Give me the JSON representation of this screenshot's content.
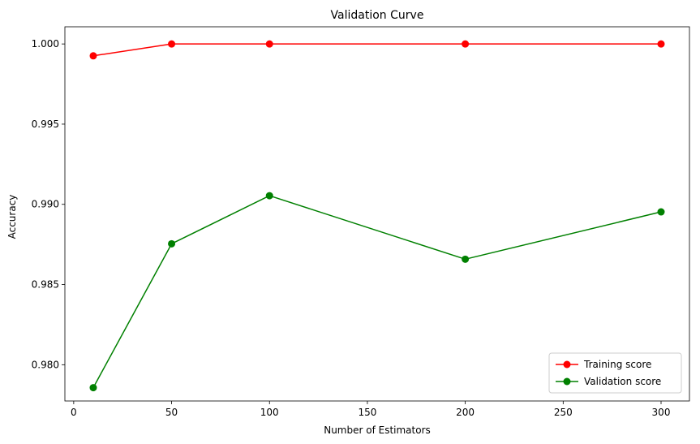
{
  "chart_data": {
    "type": "line",
    "title": "Validation Curve",
    "xlabel": "Number of Estimators",
    "ylabel": "Accuracy",
    "xlim": [
      -4.5,
      314.5
    ],
    "ylim": [
      0.97774,
      1.00107
    ],
    "xticks": [
      0,
      50,
      100,
      150,
      200,
      250,
      300
    ],
    "xtick_labels": [
      "0",
      "50",
      "100",
      "150",
      "200",
      "250",
      "300"
    ],
    "yticks": [
      0.98,
      0.985,
      0.99,
      0.995,
      1.0
    ],
    "ytick_labels": [
      "0.980",
      "0.985",
      "0.990",
      "0.995",
      "1.000"
    ],
    "grid": false,
    "legend_position": "lower-right",
    "x": [
      10,
      50,
      100,
      200,
      300
    ],
    "series": [
      {
        "name": "Training score",
        "color": "#ff0000",
        "values": [
          0.99926,
          1.0,
          1.0,
          1.0,
          1.0
        ]
      },
      {
        "name": "Validation score",
        "color": "#008000",
        "values": [
          0.97857,
          0.98754,
          0.99054,
          0.98658,
          0.98953
        ]
      }
    ]
  }
}
